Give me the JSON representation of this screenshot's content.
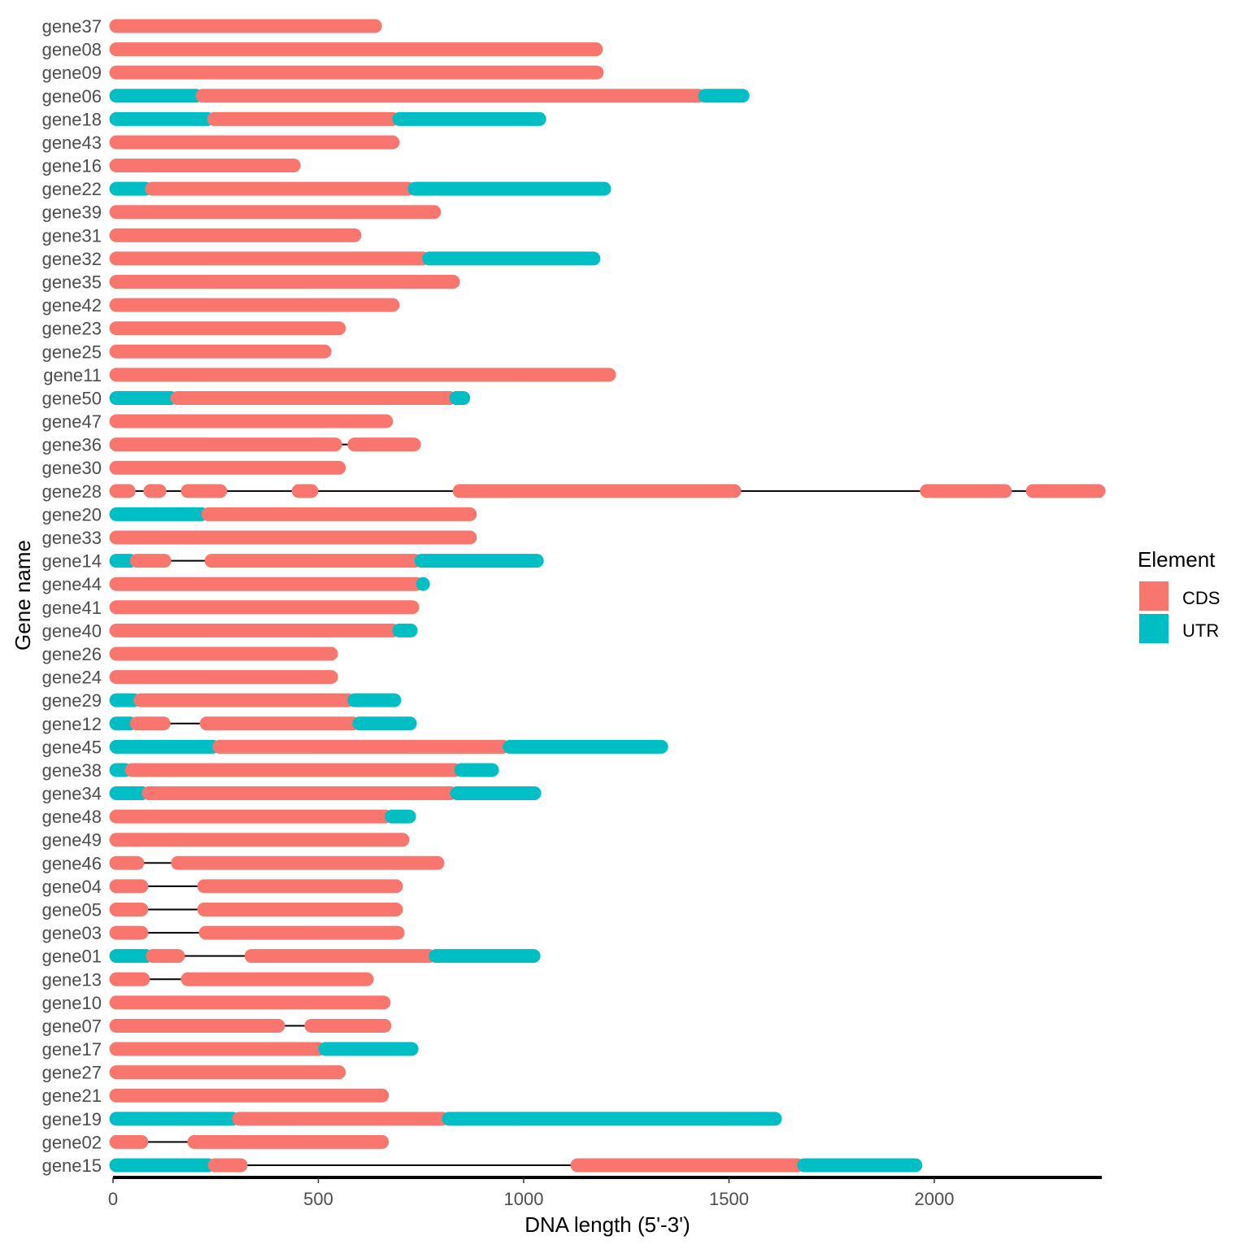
{
  "chart_data": {
    "type": "bar",
    "subtype": "gene-structure",
    "xlabel": "DNA length (5'-3')",
    "ylabel": "Gene name",
    "xlim": [
      0,
      2408
    ],
    "xticks": [
      0,
      500,
      1000,
      1500,
      2000
    ],
    "grid": false,
    "legend": {
      "title": "Element",
      "position": "right",
      "entries": [
        {
          "label": "CDS",
          "color": "#F8766D"
        },
        {
          "label": "UTR",
          "color": "#00BFC4"
        }
      ]
    },
    "genes": [
      {
        "name": "gene37",
        "segments": [
          [
            0,
            646,
            "CDS"
          ]
        ]
      },
      {
        "name": "gene08",
        "segments": [
          [
            0,
            1184,
            "CDS"
          ]
        ]
      },
      {
        "name": "gene09",
        "segments": [
          [
            0,
            1186,
            "CDS"
          ]
        ]
      },
      {
        "name": "gene06",
        "segments": [
          [
            0,
            210,
            "UTR"
          ],
          [
            210,
            1434,
            "CDS"
          ],
          [
            1434,
            1541,
            "UTR"
          ]
        ]
      },
      {
        "name": "gene18",
        "segments": [
          [
            0,
            238,
            "UTR"
          ],
          [
            238,
            689,
            "CDS"
          ],
          [
            689,
            1046,
            "UTR"
          ]
        ]
      },
      {
        "name": "gene43",
        "segments": [
          [
            0,
            689,
            "CDS"
          ]
        ]
      },
      {
        "name": "gene16",
        "segments": [
          [
            0,
            448,
            "CDS"
          ]
        ]
      },
      {
        "name": "gene22",
        "segments": [
          [
            0,
            87,
            "UTR"
          ],
          [
            87,
            727,
            "CDS"
          ],
          [
            727,
            1204,
            "UTR"
          ]
        ]
      },
      {
        "name": "gene39",
        "segments": [
          [
            0,
            790,
            "CDS"
          ]
        ]
      },
      {
        "name": "gene31",
        "segments": [
          [
            0,
            596,
            "CDS"
          ]
        ]
      },
      {
        "name": "gene32",
        "segments": [
          [
            0,
            762,
            "CDS"
          ],
          [
            762,
            1178,
            "UTR"
          ]
        ]
      },
      {
        "name": "gene35",
        "segments": [
          [
            0,
            836,
            "CDS"
          ]
        ]
      },
      {
        "name": "gene42",
        "segments": [
          [
            0,
            689,
            "CDS"
          ]
        ]
      },
      {
        "name": "gene23",
        "segments": [
          [
            0,
            558,
            "CDS"
          ]
        ]
      },
      {
        "name": "gene25",
        "segments": [
          [
            0,
            523,
            "CDS"
          ]
        ]
      },
      {
        "name": "gene11",
        "segments": [
          [
            0,
            1216,
            "CDS"
          ]
        ]
      },
      {
        "name": "gene50",
        "segments": [
          [
            0,
            149,
            "UTR"
          ],
          [
            149,
            828,
            "CDS"
          ],
          [
            828,
            861,
            "UTR"
          ]
        ]
      },
      {
        "name": "gene47",
        "segments": [
          [
            0,
            673,
            "CDS"
          ]
        ]
      },
      {
        "name": "gene36",
        "segments": [
          [
            0,
            549,
            "CDS"
          ],
          [
            580,
            741,
            "CDS"
          ]
        ]
      },
      {
        "name": "gene30",
        "segments": [
          [
            0,
            558,
            "CDS"
          ]
        ]
      },
      {
        "name": "gene28",
        "segments": [
          [
            0,
            46,
            "CDS"
          ],
          [
            83,
            121,
            "CDS"
          ],
          [
            174,
            269,
            "CDS"
          ],
          [
            444,
            491,
            "CDS"
          ],
          [
            836,
            1521,
            "CDS"
          ],
          [
            1974,
            2180,
            "CDS"
          ],
          [
            2232,
            2408,
            "CDS"
          ]
        ]
      },
      {
        "name": "gene20",
        "segments": [
          [
            0,
            224,
            "UTR"
          ],
          [
            224,
            877,
            "CDS"
          ]
        ]
      },
      {
        "name": "gene33",
        "segments": [
          [
            0,
            877,
            "CDS"
          ]
        ]
      },
      {
        "name": "gene14",
        "segments": [
          [
            0,
            50,
            "UTR"
          ],
          [
            50,
            133,
            "CDS"
          ],
          [
            232,
            743,
            "CDS"
          ],
          [
            743,
            1040,
            "UTR"
          ]
        ]
      },
      {
        "name": "gene44",
        "segments": [
          [
            0,
            747,
            "CDS"
          ],
          [
            747,
            760,
            "UTR"
          ]
        ]
      },
      {
        "name": "gene41",
        "segments": [
          [
            0,
            737,
            "CDS"
          ]
        ]
      },
      {
        "name": "gene40",
        "segments": [
          [
            0,
            689,
            "CDS"
          ],
          [
            689,
            733,
            "UTR"
          ]
        ]
      },
      {
        "name": "gene26",
        "segments": [
          [
            0,
            539,
            "CDS"
          ]
        ]
      },
      {
        "name": "gene24",
        "segments": [
          [
            0,
            539,
            "CDS"
          ]
        ]
      },
      {
        "name": "gene29",
        "segments": [
          [
            0,
            59,
            "UTR"
          ],
          [
            59,
            580,
            "CDS"
          ],
          [
            580,
            693,
            "UTR"
          ]
        ]
      },
      {
        "name": "gene12",
        "segments": [
          [
            0,
            50,
            "UTR"
          ],
          [
            50,
            131,
            "CDS"
          ],
          [
            220,
            592,
            "CDS"
          ],
          [
            592,
            731,
            "UTR"
          ]
        ]
      },
      {
        "name": "gene45",
        "segments": [
          [
            0,
            251,
            "UTR"
          ],
          [
            251,
            958,
            "CDS"
          ],
          [
            958,
            1343,
            "UTR"
          ]
        ]
      },
      {
        "name": "gene38",
        "segments": [
          [
            0,
            38,
            "UTR"
          ],
          [
            38,
            840,
            "CDS"
          ],
          [
            840,
            931,
            "UTR"
          ]
        ]
      },
      {
        "name": "gene34",
        "segments": [
          [
            0,
            79,
            "UTR"
          ],
          [
            79,
            830,
            "CDS"
          ],
          [
            830,
            1034,
            "UTR"
          ]
        ]
      },
      {
        "name": "gene48",
        "segments": [
          [
            0,
            671,
            "CDS"
          ],
          [
            671,
            729,
            "UTR"
          ]
        ]
      },
      {
        "name": "gene49",
        "segments": [
          [
            0,
            713,
            "CDS"
          ]
        ]
      },
      {
        "name": "gene46",
        "segments": [
          [
            0,
            67,
            "CDS"
          ],
          [
            150,
            798,
            "CDS"
          ]
        ]
      },
      {
        "name": "gene04",
        "segments": [
          [
            0,
            77,
            "CDS"
          ],
          [
            214,
            697,
            "CDS"
          ]
        ]
      },
      {
        "name": "gene05",
        "segments": [
          [
            0,
            77,
            "CDS"
          ],
          [
            214,
            697,
            "CDS"
          ]
        ]
      },
      {
        "name": "gene03",
        "segments": [
          [
            0,
            77,
            "CDS"
          ],
          [
            218,
            701,
            "CDS"
          ]
        ]
      },
      {
        "name": "gene01",
        "segments": [
          [
            0,
            89,
            "UTR"
          ],
          [
            89,
            166,
            "CDS"
          ],
          [
            329,
            778,
            "CDS"
          ],
          [
            778,
            1032,
            "UTR"
          ]
        ]
      },
      {
        "name": "gene13",
        "segments": [
          [
            0,
            81,
            "CDS"
          ],
          [
            174,
            626,
            "CDS"
          ]
        ]
      },
      {
        "name": "gene10",
        "segments": [
          [
            0,
            667,
            "CDS"
          ]
        ]
      },
      {
        "name": "gene07",
        "segments": [
          [
            0,
            410,
            "CDS"
          ],
          [
            475,
            669,
            "CDS"
          ]
        ]
      },
      {
        "name": "gene17",
        "segments": [
          [
            0,
            509,
            "CDS"
          ],
          [
            509,
            735,
            "UTR"
          ]
        ]
      },
      {
        "name": "gene27",
        "segments": [
          [
            0,
            558,
            "CDS"
          ]
        ]
      },
      {
        "name": "gene21",
        "segments": [
          [
            0,
            663,
            "CDS"
          ]
        ]
      },
      {
        "name": "gene19",
        "segments": [
          [
            0,
            299,
            "UTR"
          ],
          [
            299,
            810,
            "CDS"
          ],
          [
            810,
            1620,
            "UTR"
          ]
        ]
      },
      {
        "name": "gene02",
        "segments": [
          [
            0,
            77,
            "CDS"
          ],
          [
            190,
            663,
            "CDS"
          ]
        ]
      },
      {
        "name": "gene15",
        "segments": [
          [
            0,
            240,
            "UTR"
          ],
          [
            240,
            319,
            "CDS"
          ],
          [
            1123,
            1675,
            "CDS"
          ],
          [
            1675,
            1962,
            "UTR"
          ]
        ]
      }
    ]
  }
}
